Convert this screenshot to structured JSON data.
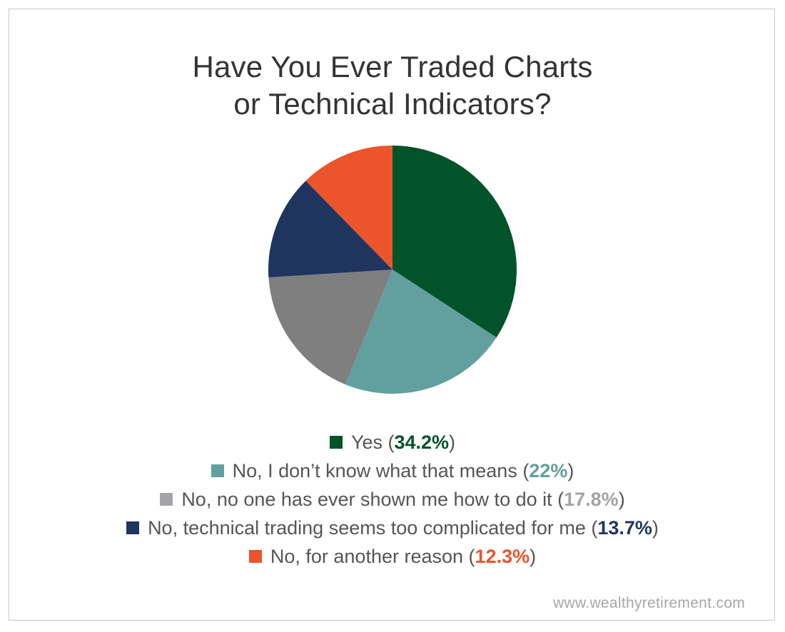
{
  "chart_data": {
    "type": "pie",
    "title_lines": [
      "Have You Ever Traded Charts",
      "or Technical Indicators?"
    ],
    "slices": [
      {
        "label": "Yes",
        "value": 34.2,
        "value_text": "34.2%",
        "color": "#02522a"
      },
      {
        "label": "No, I don’t know what that means",
        "value": 22,
        "value_text": "22%",
        "color": "#62a0a0"
      },
      {
        "label": "No, no one has ever shown me how to do it",
        "value": 17.8,
        "value_text": "17.8%",
        "color": "#a4a4a7"
      },
      {
        "label": "No, technical trading seems too complicated for me",
        "value": 13.7,
        "value_text": "13.7%",
        "color": "#1f355f"
      },
      {
        "label": "No, for another reason",
        "value": 12.3,
        "value_text": "12.3%",
        "color": "#ec542b"
      }
    ],
    "legend_position": "bottom",
    "colors": {
      "title": "#333333",
      "legend_text": "#555555",
      "source": "#a7a7a7",
      "pie_fill_1": "#02522a",
      "pie_fill_2": "#62a0a0",
      "pie_fill_3": "#7f7f80",
      "pie_fill_4": "#1f355f",
      "pie_fill_5": "#ec542b"
    }
  },
  "source_text": "www.wealthyretirement.com"
}
